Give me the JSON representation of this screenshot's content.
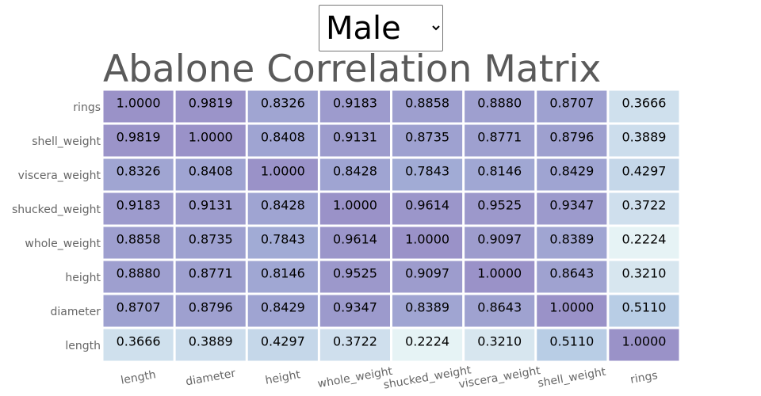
{
  "filter": {
    "options": [
      "Male"
    ],
    "selected": "Male"
  },
  "chart_data": {
    "type": "heatmap",
    "title": "Abalone Correlation Matrix",
    "x_categories": [
      "length",
      "diameter",
      "height",
      "whole_weight",
      "shucked_weight",
      "viscera_weight",
      "shell_weight",
      "rings"
    ],
    "y_categories": [
      "rings",
      "shell_weight",
      "viscera_weight",
      "shucked_weight",
      "whole_weight",
      "height",
      "diameter",
      "length"
    ],
    "values": [
      [
        1.0,
        0.9819,
        0.8326,
        0.9183,
        0.8858,
        0.888,
        0.8707,
        0.3666
      ],
      [
        0.9819,
        1.0,
        0.8408,
        0.9131,
        0.8735,
        0.8771,
        0.8796,
        0.3889
      ],
      [
        0.8326,
        0.8408,
        1.0,
        0.8428,
        0.7843,
        0.8146,
        0.8429,
        0.4297
      ],
      [
        0.9183,
        0.9131,
        0.8428,
        1.0,
        0.9614,
        0.9525,
        0.9347,
        0.3722
      ],
      [
        0.8858,
        0.8735,
        0.7843,
        0.9614,
        1.0,
        0.9097,
        0.8389,
        0.2224
      ],
      [
        0.888,
        0.8771,
        0.8146,
        0.9525,
        0.9097,
        1.0,
        0.8643,
        0.321
      ],
      [
        0.8707,
        0.8796,
        0.8429,
        0.9347,
        0.8389,
        0.8643,
        1.0,
        0.511
      ],
      [
        0.3666,
        0.3889,
        0.4297,
        0.3722,
        0.2224,
        0.321,
        0.511,
        1.0
      ]
    ],
    "value_format": "4 decimals",
    "color_scale": {
      "low": "#eaf6f6",
      "mid": "#a7bedf",
      "high": "#9a92c8"
    },
    "cell_border": "#ffffff",
    "label_color": "#666666",
    "value_color": "#000000"
  }
}
